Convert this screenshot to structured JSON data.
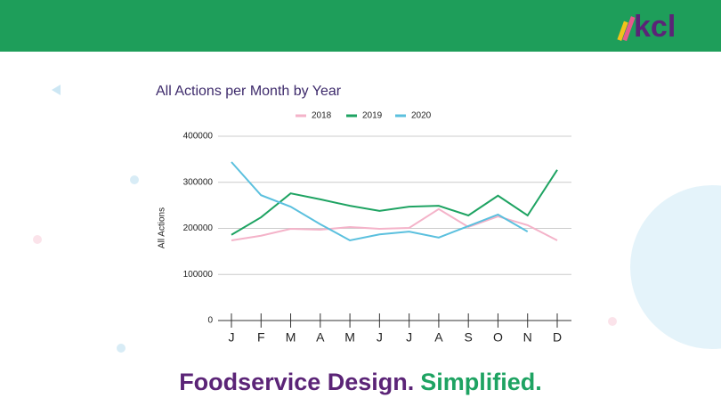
{
  "logo": "kcl",
  "tagline": [
    "Foodservice Design.",
    "Simplified."
  ],
  "chart_data": {
    "type": "line",
    "title": "All Actions per Month by Year",
    "y_label": "All Actions",
    "categories": [
      "J",
      "F",
      "M",
      "A",
      "M",
      "J",
      "J",
      "A",
      "S",
      "O",
      "N",
      "D"
    ],
    "series": [
      {
        "name": "2018",
        "color": "#f4b3c9",
        "values": [
          174000,
          184000,
          199000,
          197000,
          203000,
          199000,
          201000,
          242000,
          203000,
          226000,
          207000,
          174000
        ]
      },
      {
        "name": "2019",
        "color": "#1ea362",
        "values": [
          186000,
          224000,
          276000,
          263000,
          249000,
          238000,
          247000,
          249000,
          228000,
          271000,
          228000,
          327000
        ]
      },
      {
        "name": "2020",
        "color": "#5bc0de",
        "values": [
          344000,
          272000,
          247000,
          209000,
          174000,
          187000,
          193000,
          180000,
          205000,
          230000,
          193000,
          null
        ]
      }
    ],
    "ylim": [
      0,
      400000
    ],
    "yticks": [
      0,
      100000,
      200000,
      300000,
      400000
    ],
    "grid": true,
    "legend": "top"
  }
}
